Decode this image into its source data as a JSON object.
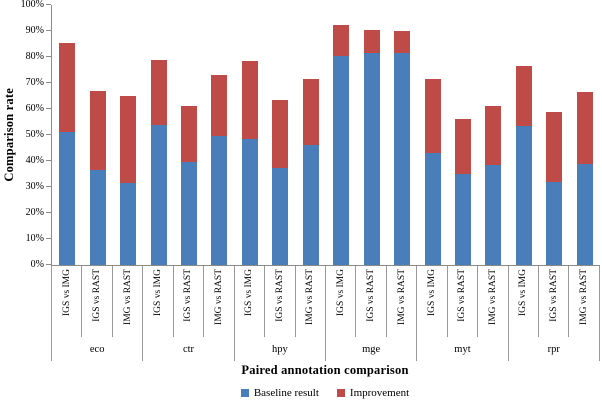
{
  "chart_data": {
    "type": "bar",
    "stacked": true,
    "title": "",
    "xlabel": "Paired annotation comparison",
    "ylabel": "Comparison rate",
    "ylim": [
      0,
      100
    ],
    "grid": false,
    "legend_position": "bottom",
    "yticks": [
      "0%",
      "10%",
      "20%",
      "30%",
      "40%",
      "50%",
      "60%",
      "70%",
      "80%",
      "90%",
      "100%"
    ],
    "groups": [
      "eco",
      "ctr",
      "hpy",
      "mge",
      "myt",
      "rpr"
    ],
    "categories_per_group": [
      "IGS vs IMG",
      "IGS vs RAST",
      "IMG vs RAST"
    ],
    "series": [
      {
        "name": "Baseline result",
        "color": "#4A7EBB",
        "values": [
          51,
          36.5,
          31.5,
          54,
          39.5,
          49.5,
          48.5,
          37.5,
          46,
          80.5,
          81.5,
          81.5,
          43,
          35,
          38.5,
          53.5,
          32,
          39
        ]
      },
      {
        "name": "Improvement",
        "color": "#BE4B48",
        "values": [
          34.5,
          30.5,
          33.5,
          25,
          21.5,
          23.5,
          30,
          26,
          25.5,
          12,
          9,
          8.5,
          28.5,
          21,
          22.5,
          23,
          27,
          27.5
        ]
      }
    ]
  }
}
